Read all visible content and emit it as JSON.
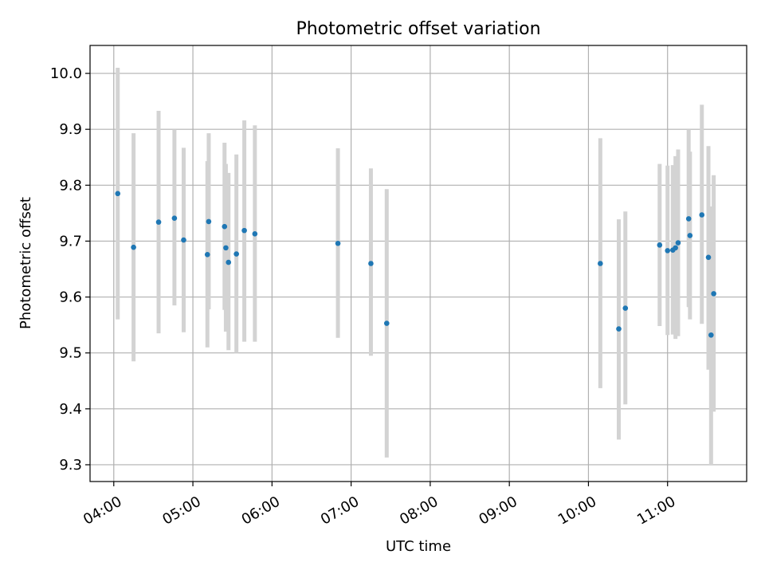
{
  "chart_data": {
    "type": "scatter",
    "title": "Photometric offset variation",
    "xlabel": "UTC time",
    "ylabel": "Photometric offset",
    "x_ticks": [
      "04:00",
      "05:00",
      "06:00",
      "07:00",
      "08:00",
      "09:00",
      "10:00",
      "11:00"
    ],
    "y_ticks": [
      "9.3",
      "9.4",
      "9.5",
      "9.6",
      "9.7",
      "9.8",
      "9.9",
      "10.0"
    ],
    "xlim": [
      "03:42",
      "12:00"
    ],
    "ylim": [
      9.27,
      10.05
    ],
    "grid": true,
    "colors": {
      "point": "#1f77b4",
      "errorbar": "#d3d3d3",
      "grid": "#b0b0b0"
    },
    "points": [
      {
        "x": "04:03",
        "y": 9.785,
        "lo": 9.56,
        "hi": 10.01
      },
      {
        "x": "04:15",
        "y": 9.689,
        "lo": 9.485,
        "hi": 9.893
      },
      {
        "x": "04:34",
        "y": 9.734,
        "lo": 9.535,
        "hi": 9.933
      },
      {
        "x": "04:46",
        "y": 9.741,
        "lo": 9.585,
        "hi": 9.9
      },
      {
        "x": "04:53",
        "y": 9.702,
        "lo": 9.537,
        "hi": 9.867
      },
      {
        "x": "05:11",
        "y": 9.676,
        "lo": 9.51,
        "hi": 9.843
      },
      {
        "x": "05:12",
        "y": 9.735,
        "lo": 9.578,
        "hi": 9.893
      },
      {
        "x": "05:24",
        "y": 9.726,
        "lo": 9.577,
        "hi": 9.876
      },
      {
        "x": "05:25",
        "y": 9.688,
        "lo": 9.538,
        "hi": 9.838
      },
      {
        "x": "05:27",
        "y": 9.662,
        "lo": 9.505,
        "hi": 9.822
      },
      {
        "x": "05:33",
        "y": 9.677,
        "lo": 9.5,
        "hi": 9.855
      },
      {
        "x": "05:39",
        "y": 9.719,
        "lo": 9.52,
        "hi": 9.916
      },
      {
        "x": "05:47",
        "y": 9.713,
        "lo": 9.52,
        "hi": 9.907
      },
      {
        "x": "06:50",
        "y": 9.696,
        "lo": 9.527,
        "hi": 9.866
      },
      {
        "x": "07:15",
        "y": 9.66,
        "lo": 9.495,
        "hi": 9.83
      },
      {
        "x": "07:27",
        "y": 9.553,
        "lo": 9.313,
        "hi": 9.793
      },
      {
        "x": "10:09",
        "y": 9.66,
        "lo": 9.437,
        "hi": 9.884
      },
      {
        "x": "10:23",
        "y": 9.543,
        "lo": 9.345,
        "hi": 9.739
      },
      {
        "x": "10:28",
        "y": 9.58,
        "lo": 9.408,
        "hi": 9.753
      },
      {
        "x": "10:54",
        "y": 9.693,
        "lo": 9.548,
        "hi": 9.838
      },
      {
        "x": "11:00",
        "y": 9.683,
        "lo": 9.532,
        "hi": 9.835
      },
      {
        "x": "11:04",
        "y": 9.684,
        "lo": 9.533,
        "hi": 9.836
      },
      {
        "x": "11:06",
        "y": 9.688,
        "lo": 9.525,
        "hi": 9.852
      },
      {
        "x": "11:08",
        "y": 9.697,
        "lo": 9.53,
        "hi": 9.864
      },
      {
        "x": "11:16",
        "y": 9.74,
        "lo": 9.582,
        "hi": 9.9
      },
      {
        "x": "11:17",
        "y": 9.71,
        "lo": 9.56,
        "hi": 9.86
      },
      {
        "x": "11:26",
        "y": 9.747,
        "lo": 9.552,
        "hi": 9.944
      },
      {
        "x": "11:31",
        "y": 9.671,
        "lo": 9.47,
        "hi": 9.87
      },
      {
        "x": "11:33",
        "y": 9.532,
        "lo": 9.3,
        "hi": 9.762
      },
      {
        "x": "11:35",
        "y": 9.606,
        "lo": 9.395,
        "hi": 9.818
      }
    ]
  }
}
